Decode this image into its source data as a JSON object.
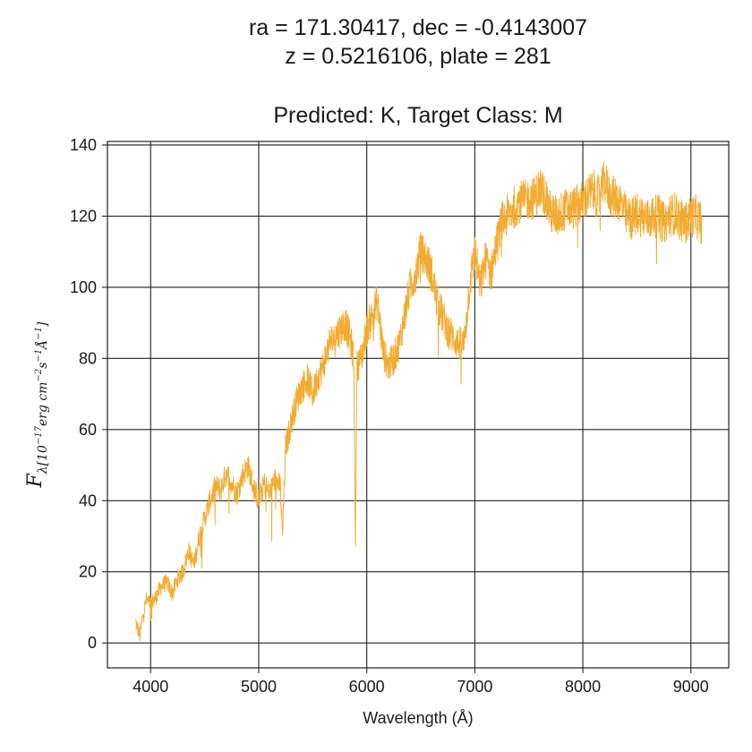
{
  "title": {
    "line1": "ra = 171.30417, dec = -0.4143007",
    "line2": "z = 0.5216106, plate = 281",
    "line3": "Predicted: K, Target Class: M"
  },
  "chart_data": {
    "type": "line",
    "xlabel": "Wavelength (Å)",
    "ylabel": "F_λ [10^-17 erg cm^-2 s^-1 Å^-1]",
    "xlim": [
      3600,
      9350
    ],
    "ylim": [
      -7,
      141
    ],
    "xticks": [
      4000,
      5000,
      6000,
      7000,
      8000,
      9000
    ],
    "yticks": [
      0,
      20,
      40,
      60,
      80,
      100,
      120,
      140
    ],
    "grid": true,
    "line_color": "#f2ac33",
    "series": [
      {
        "x": [
          3860,
          3880,
          3900,
          3930,
          3960,
          4000,
          4050,
          4100,
          4150,
          4200,
          4250,
          4300,
          4350,
          4400,
          4450,
          4500,
          4550,
          4600,
          4650,
          4700,
          4750,
          4800,
          4850,
          4900,
          4950,
          5000,
          5050,
          5100,
          5150,
          5200,
          5220,
          5250,
          5300,
          5350,
          5400,
          5450,
          5500,
          5550,
          5600,
          5650,
          5700,
          5750,
          5800,
          5850,
          5880,
          5895,
          5910,
          5950,
          6000,
          6050,
          6100,
          6150,
          6200,
          6250,
          6300,
          6350,
          6400,
          6450,
          6500,
          6550,
          6600,
          6650,
          6700,
          6750,
          6800,
          6850,
          6900,
          6950,
          7000,
          7050,
          7100,
          7150,
          7200,
          7250,
          7300,
          7350,
          7400,
          7450,
          7500,
          7550,
          7600,
          7650,
          7700,
          7750,
          7800,
          7850,
          7900,
          7950,
          8000,
          8050,
          8100,
          8150,
          8200,
          8250,
          8300,
          8350,
          8400,
          8450,
          8500,
          8550,
          8600,
          8650,
          8700,
          8750,
          8800,
          8850,
          8900,
          8950,
          9000,
          9050,
          9100
        ],
        "y": [
          6,
          4,
          2,
          8,
          12,
          11,
          13,
          16,
          17,
          14,
          18,
          20,
          26,
          22,
          30,
          35,
          40,
          44,
          43,
          48,
          45,
          42,
          47,
          50,
          44,
          40,
          45,
          42,
          46,
          44,
          30,
          55,
          62,
          68,
          72,
          74,
          70,
          75,
          78,
          84,
          86,
          88,
          90,
          85,
          80,
          28,
          78,
          80,
          88,
          92,
          96,
          82,
          78,
          80,
          84,
          92,
          100,
          104,
          110,
          108,
          104,
          96,
          92,
          88,
          86,
          84,
          84,
          100,
          110,
          100,
          108,
          104,
          112,
          118,
          120,
          122,
          124,
          124,
          125,
          125,
          128,
          126,
          121,
          120,
          121,
          122,
          122,
          123,
          124,
          126,
          127,
          125,
          130,
          126,
          125,
          124,
          120,
          119,
          121,
          120,
          119,
          120,
          120,
          118,
          120,
          121,
          119,
          118,
          120,
          120,
          118
        ]
      }
    ]
  }
}
